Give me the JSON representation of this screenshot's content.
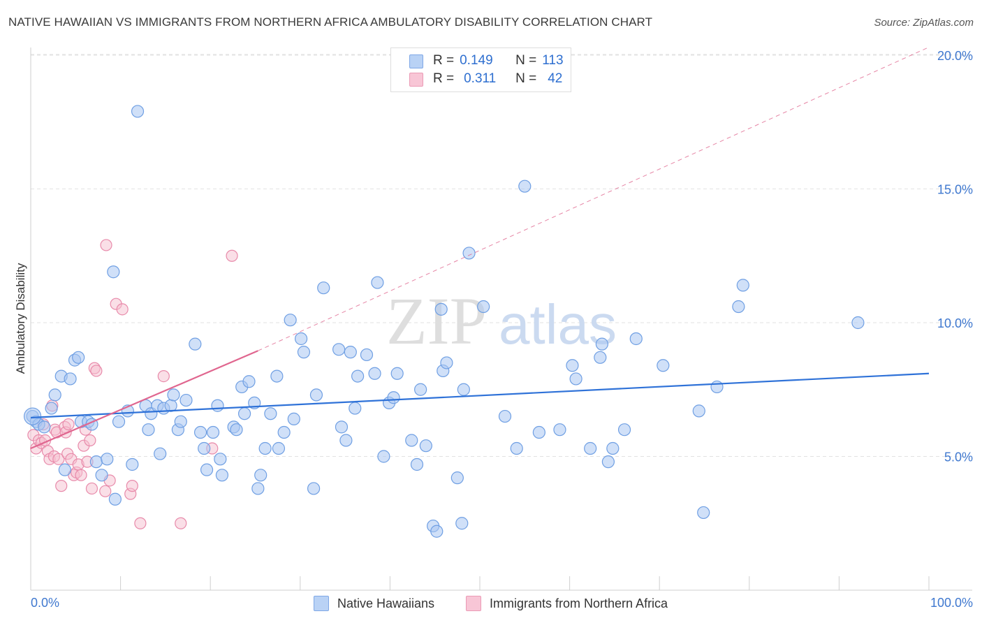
{
  "title": "NATIVE HAWAIIAN VS IMMIGRANTS FROM NORTHERN AFRICA AMBULATORY DISABILITY CORRELATION CHART",
  "source": "Source: ZipAtlas.com",
  "watermark": {
    "zip": "ZIP",
    "atlas": "atlas"
  },
  "legend": {
    "blue": {
      "r_label": "R =",
      "r_value": "0.149",
      "n_label": "N =",
      "n_value": "113"
    },
    "pink": {
      "r_label": "R =",
      "r_value": "0.311",
      "n_label": "N =",
      "n_value": "42"
    }
  },
  "bottom_legend": {
    "blue_label": "Native Hawaiians",
    "pink_label": "Immigrants from Northern Africa"
  },
  "colors": {
    "blue": "#2f72d8",
    "blue_fill": "#a9c6f2",
    "pink": "#e0668f",
    "pink_fill": "#f5bfd0",
    "tick_label": "#3f78cf"
  },
  "chart_data": {
    "type": "scatter",
    "title": "NATIVE HAWAIIAN VS IMMIGRANTS FROM NORTHERN AFRICA AMBULATORY DISABILITY CORRELATION CHART",
    "xlabel": "",
    "ylabel": "Ambulatory Disability",
    "xlim": [
      0,
      100
    ],
    "ylim": [
      0,
      20.5
    ],
    "x_tick_labels": [
      "0.0%",
      "100.0%"
    ],
    "y_ticks": [
      5,
      10,
      15,
      20
    ],
    "y_tick_labels": [
      "5.0%",
      "10.0%",
      "15.0%",
      "20.0%"
    ],
    "series": [
      {
        "name": "Native Hawaiians",
        "points": [
          [
            0.2,
            6.5
          ],
          [
            0.6,
            6.3
          ],
          [
            0.9,
            6.2
          ],
          [
            1.5,
            6.1
          ],
          [
            2.3,
            6.8
          ],
          [
            2.7,
            7.3
          ],
          [
            3.4,
            8.0
          ],
          [
            3.8,
            4.5
          ],
          [
            4.4,
            7.9
          ],
          [
            4.9,
            8.6
          ],
          [
            5.3,
            8.7
          ],
          [
            5.6,
            6.3
          ],
          [
            6.4,
            6.3
          ],
          [
            6.8,
            6.2
          ],
          [
            7.3,
            4.8
          ],
          [
            7.9,
            4.3
          ],
          [
            8.5,
            4.9
          ],
          [
            9.2,
            11.9
          ],
          [
            9.4,
            3.4
          ],
          [
            9.8,
            6.3
          ],
          [
            10.8,
            6.7
          ],
          [
            11.3,
            4.7
          ],
          [
            11.9,
            17.9
          ],
          [
            12.8,
            6.9
          ],
          [
            13.1,
            6.0
          ],
          [
            13.4,
            6.6
          ],
          [
            14.1,
            6.9
          ],
          [
            14.4,
            5.1
          ],
          [
            14.8,
            6.8
          ],
          [
            15.6,
            6.9
          ],
          [
            15.9,
            7.3
          ],
          [
            16.4,
            6.0
          ],
          [
            16.7,
            6.3
          ],
          [
            17.3,
            7.1
          ],
          [
            18.3,
            9.2
          ],
          [
            18.9,
            5.9
          ],
          [
            19.3,
            5.3
          ],
          [
            19.6,
            4.5
          ],
          [
            20.3,
            5.9
          ],
          [
            20.8,
            6.9
          ],
          [
            21.1,
            4.9
          ],
          [
            21.3,
            4.3
          ],
          [
            22.6,
            6.1
          ],
          [
            22.9,
            6.0
          ],
          [
            23.5,
            7.6
          ],
          [
            23.8,
            6.6
          ],
          [
            24.3,
            7.8
          ],
          [
            24.9,
            7.0
          ],
          [
            25.3,
            3.8
          ],
          [
            25.6,
            4.3
          ],
          [
            26.1,
            5.3
          ],
          [
            26.7,
            6.6
          ],
          [
            27.4,
            8.0
          ],
          [
            27.6,
            5.3
          ],
          [
            28.2,
            5.9
          ],
          [
            28.9,
            10.1
          ],
          [
            29.3,
            6.4
          ],
          [
            30.1,
            9.4
          ],
          [
            30.4,
            8.9
          ],
          [
            31.5,
            3.8
          ],
          [
            31.8,
            7.3
          ],
          [
            32.6,
            11.3
          ],
          [
            34.3,
            9.0
          ],
          [
            34.6,
            6.1
          ],
          [
            35.1,
            5.6
          ],
          [
            35.6,
            8.9
          ],
          [
            36.1,
            6.8
          ],
          [
            36.4,
            8.0
          ],
          [
            37.4,
            8.8
          ],
          [
            38.3,
            8.1
          ],
          [
            38.6,
            11.5
          ],
          [
            39.3,
            5.0
          ],
          [
            39.9,
            7.0
          ],
          [
            40.4,
            7.2
          ],
          [
            40.8,
            8.1
          ],
          [
            42.4,
            5.6
          ],
          [
            43.0,
            4.7
          ],
          [
            43.4,
            7.5
          ],
          [
            44.0,
            5.4
          ],
          [
            44.8,
            2.4
          ],
          [
            45.2,
            2.2
          ],
          [
            45.7,
            10.5
          ],
          [
            45.9,
            8.2
          ],
          [
            46.3,
            8.5
          ],
          [
            47.5,
            4.2
          ],
          [
            48.0,
            2.5
          ],
          [
            48.2,
            7.5
          ],
          [
            48.8,
            12.6
          ],
          [
            50.4,
            10.6
          ],
          [
            52.8,
            6.5
          ],
          [
            54.1,
            5.3
          ],
          [
            55.0,
            15.1
          ],
          [
            56.6,
            5.9
          ],
          [
            58.9,
            6.0
          ],
          [
            60.3,
            8.4
          ],
          [
            60.7,
            7.9
          ],
          [
            62.3,
            5.3
          ],
          [
            63.4,
            8.7
          ],
          [
            63.6,
            9.2
          ],
          [
            64.3,
            4.8
          ],
          [
            64.8,
            5.3
          ],
          [
            66.1,
            6.0
          ],
          [
            67.4,
            9.4
          ],
          [
            70.4,
            8.4
          ],
          [
            74.4,
            6.7
          ],
          [
            74.9,
            2.9
          ],
          [
            76.4,
            7.6
          ],
          [
            78.8,
            10.6
          ],
          [
            79.3,
            11.4
          ],
          [
            92.1,
            10.0
          ]
        ]
      },
      {
        "name": "Immigrants from Northern Africa",
        "points": [
          [
            0.3,
            5.8
          ],
          [
            0.6,
            5.3
          ],
          [
            0.9,
            5.6
          ],
          [
            1.2,
            5.5
          ],
          [
            1.4,
            6.2
          ],
          [
            1.6,
            5.6
          ],
          [
            1.9,
            5.2
          ],
          [
            2.1,
            4.9
          ],
          [
            2.4,
            6.9
          ],
          [
            2.6,
            5.0
          ],
          [
            2.7,
            6.0
          ],
          [
            2.9,
            5.9
          ],
          [
            3.1,
            4.9
          ],
          [
            3.4,
            3.9
          ],
          [
            3.8,
            6.1
          ],
          [
            3.9,
            5.9
          ],
          [
            4.1,
            5.1
          ],
          [
            4.2,
            6.2
          ],
          [
            4.5,
            4.9
          ],
          [
            4.8,
            4.3
          ],
          [
            5.1,
            4.4
          ],
          [
            5.3,
            4.7
          ],
          [
            5.6,
            4.3
          ],
          [
            5.9,
            5.4
          ],
          [
            6.1,
            6.0
          ],
          [
            6.3,
            4.8
          ],
          [
            6.6,
            5.6
          ],
          [
            6.8,
            3.8
          ],
          [
            7.1,
            8.3
          ],
          [
            7.3,
            8.2
          ],
          [
            8.3,
            3.7
          ],
          [
            8.4,
            12.9
          ],
          [
            8.8,
            4.1
          ],
          [
            9.5,
            10.7
          ],
          [
            10.2,
            10.5
          ],
          [
            11.1,
            3.6
          ],
          [
            11.3,
            3.9
          ],
          [
            12.2,
            2.5
          ],
          [
            14.8,
            8.0
          ],
          [
            16.7,
            2.5
          ],
          [
            20.2,
            5.3
          ],
          [
            22.4,
            12.5
          ]
        ]
      }
    ],
    "trendlines": [
      {
        "series": "Native Hawaiians",
        "x": [
          0,
          100
        ],
        "y": [
          6.45,
          8.1
        ],
        "style": "solid"
      },
      {
        "series": "Immigrants from Northern Africa",
        "x": [
          0,
          25.3
        ],
        "y": [
          5.3,
          8.95
        ],
        "style": "solid"
      },
      {
        "series": "Immigrants from Northern Africa",
        "x": [
          25.3,
          100
        ],
        "y": [
          8.95,
          20.3
        ],
        "style": "dashed"
      }
    ]
  }
}
